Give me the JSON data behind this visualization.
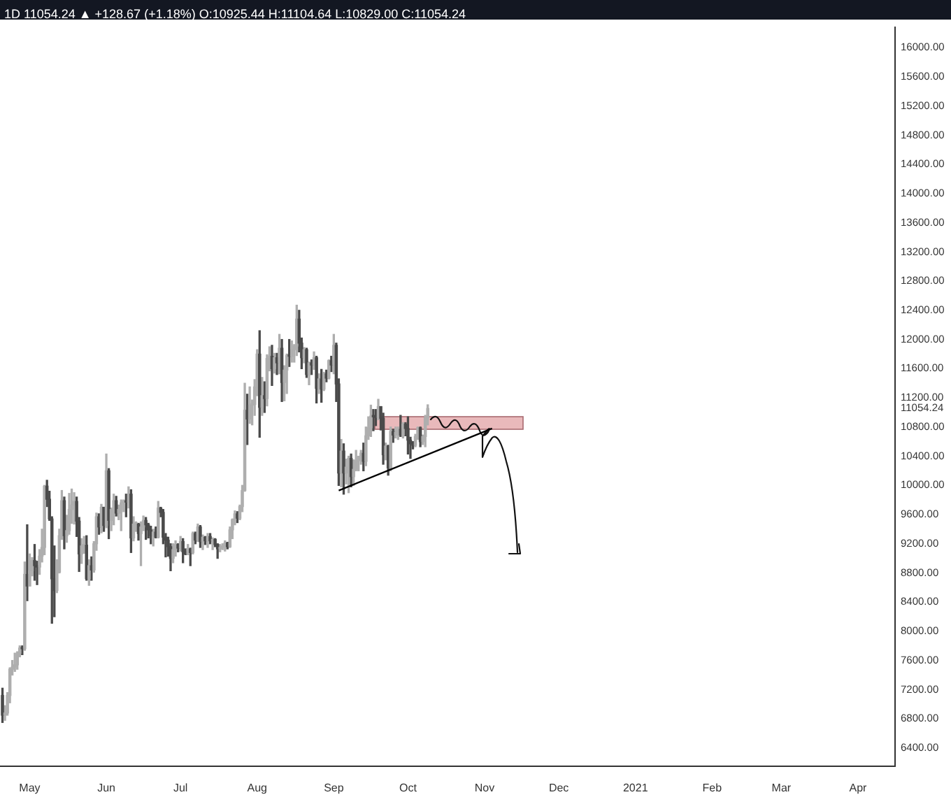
{
  "chart_data": {
    "type": "candlestick",
    "title": "1D 11054.24 ▲ +128.67 (+1.18%) O:10925.44 H:11104.64 L:10829.00 C:11054.24",
    "x": [
      "2020-04-20",
      "2020-04-21",
      "2020-04-22",
      "2020-04-23",
      "2020-04-24",
      "2020-04-25",
      "2020-04-26",
      "2020-04-27",
      "2020-04-28",
      "2020-04-29",
      "2020-04-30",
      "2020-05-01",
      "2020-05-02",
      "2020-05-03",
      "2020-05-04",
      "2020-05-05",
      "2020-05-06",
      "2020-05-07",
      "2020-05-08",
      "2020-05-09",
      "2020-05-10",
      "2020-05-11",
      "2020-05-12",
      "2020-05-13",
      "2020-05-14",
      "2020-05-15",
      "2020-05-16",
      "2020-05-17",
      "2020-05-18",
      "2020-05-19",
      "2020-05-20",
      "2020-05-21",
      "2020-05-22",
      "2020-05-23",
      "2020-05-24",
      "2020-05-25",
      "2020-05-26",
      "2020-05-27",
      "2020-05-28",
      "2020-05-29",
      "2020-05-30",
      "2020-05-31",
      "2020-06-01",
      "2020-06-02",
      "2020-06-03",
      "2020-06-04",
      "2020-06-05",
      "2020-06-06",
      "2020-06-07",
      "2020-06-08",
      "2020-06-09",
      "2020-06-10",
      "2020-06-11",
      "2020-06-12",
      "2020-06-13",
      "2020-06-14",
      "2020-06-15",
      "2020-06-16",
      "2020-06-17",
      "2020-06-18",
      "2020-06-19",
      "2020-06-20",
      "2020-06-21",
      "2020-06-22",
      "2020-06-23",
      "2020-06-24",
      "2020-06-25",
      "2020-06-26",
      "2020-06-27",
      "2020-06-28",
      "2020-06-29",
      "2020-06-30",
      "2020-07-01",
      "2020-07-02",
      "2020-07-03",
      "2020-07-04",
      "2020-07-05",
      "2020-07-06",
      "2020-07-07",
      "2020-07-08",
      "2020-07-09",
      "2020-07-10",
      "2020-07-11",
      "2020-07-12",
      "2020-07-13",
      "2020-07-14",
      "2020-07-15",
      "2020-07-16",
      "2020-07-17",
      "2020-07-18",
      "2020-07-19",
      "2020-07-20",
      "2020-07-21",
      "2020-07-22",
      "2020-07-23",
      "2020-07-24",
      "2020-07-25",
      "2020-07-26",
      "2020-07-27",
      "2020-07-28",
      "2020-07-29",
      "2020-07-30",
      "2020-07-31",
      "2020-08-01",
      "2020-08-02",
      "2020-08-03",
      "2020-08-04",
      "2020-08-05",
      "2020-08-06",
      "2020-08-07",
      "2020-08-08",
      "2020-08-09",
      "2020-08-10",
      "2020-08-11",
      "2020-08-12",
      "2020-08-13",
      "2020-08-14",
      "2020-08-15",
      "2020-08-16",
      "2020-08-17",
      "2020-08-18",
      "2020-08-19",
      "2020-08-20",
      "2020-08-21",
      "2020-08-22",
      "2020-08-23",
      "2020-08-24",
      "2020-08-25",
      "2020-08-26",
      "2020-08-27",
      "2020-08-28",
      "2020-08-29",
      "2020-08-30",
      "2020-08-31",
      "2020-09-01",
      "2020-09-02",
      "2020-09-03",
      "2020-09-04",
      "2020-09-05",
      "2020-09-06",
      "2020-09-07",
      "2020-09-08",
      "2020-09-09",
      "2020-09-10",
      "2020-09-11",
      "2020-09-12",
      "2020-09-13",
      "2020-09-14",
      "2020-09-15",
      "2020-09-16",
      "2020-09-17",
      "2020-09-18",
      "2020-09-19",
      "2020-09-20",
      "2020-09-21",
      "2020-09-22",
      "2020-09-23",
      "2020-09-24",
      "2020-09-25",
      "2020-09-26",
      "2020-09-27",
      "2020-09-28",
      "2020-09-29",
      "2020-09-30",
      "2020-10-01",
      "2020-10-02",
      "2020-10-03",
      "2020-10-04",
      "2020-10-05",
      "2020-10-06",
      "2020-10-07",
      "2020-10-08",
      "2020-10-09"
    ],
    "ohlc": [
      [
        7120,
        7220,
        6750,
        6850
      ],
      [
        6850,
        6980,
        6780,
        6880
      ],
      [
        6880,
        7160,
        6850,
        7120
      ],
      [
        7120,
        7500,
        7020,
        7480
      ],
      [
        7480,
        7600,
        7400,
        7510
      ],
      [
        7510,
        7700,
        7450,
        7540
      ],
      [
        7540,
        7720,
        7480,
        7700
      ],
      [
        7700,
        7800,
        7650,
        7770
      ],
      [
        7770,
        7800,
        7680,
        7760
      ],
      [
        7760,
        8950,
        7740,
        8780
      ],
      [
        8780,
        9460,
        8420,
        8620
      ],
      [
        8620,
        9060,
        8620,
        8830
      ],
      [
        8830,
        9010,
        8760,
        8970
      ],
      [
        8970,
        9190,
        8700,
        8900
      ],
      [
        8900,
        8960,
        8640,
        8880
      ],
      [
        8880,
        9120,
        8780,
        9030
      ],
      [
        9030,
        9400,
        8950,
        9150
      ],
      [
        9150,
        10000,
        9050,
        9990
      ],
      [
        9990,
        10070,
        9710,
        9810
      ],
      [
        9810,
        9920,
        9520,
        9540
      ],
      [
        9540,
        9570,
        8110,
        8720
      ],
      [
        8720,
        9170,
        8200,
        8560
      ],
      [
        8560,
        8980,
        8530,
        8810
      ],
      [
        8810,
        9400,
        8800,
        9310
      ],
      [
        9310,
        9930,
        9260,
        9790
      ],
      [
        9790,
        9840,
        9130,
        9310
      ],
      [
        9310,
        9590,
        9220,
        9380
      ],
      [
        9380,
        9890,
        9330,
        9670
      ],
      [
        9670,
        9950,
        9480,
        9730
      ],
      [
        9730,
        9900,
        9470,
        9780
      ],
      [
        9780,
        9840,
        9300,
        9510
      ],
      [
        9510,
        9560,
        8820,
        9060
      ],
      [
        9060,
        9270,
        8930,
        9170
      ],
      [
        9170,
        9300,
        9070,
        9180
      ],
      [
        9180,
        9310,
        8700,
        8720
      ],
      [
        8720,
        8980,
        8630,
        8900
      ],
      [
        8900,
        9020,
        8700,
        8840
      ],
      [
        8840,
        9230,
        8810,
        9200
      ],
      [
        9200,
        9620,
        9110,
        9570
      ],
      [
        9570,
        9610,
        9330,
        9430
      ],
      [
        9430,
        9740,
        9350,
        9700
      ],
      [
        9700,
        9700,
        9370,
        9450
      ],
      [
        9450,
        10430,
        9420,
        10200
      ],
      [
        10200,
        10230,
        9270,
        9520
      ],
      [
        9520,
        9690,
        9380,
        9670
      ],
      [
        9670,
        9880,
        9460,
        9790
      ],
      [
        9790,
        9850,
        9580,
        9620
      ],
      [
        9620,
        9730,
        9530,
        9670
      ],
      [
        9670,
        9800,
        9380,
        9760
      ],
      [
        9760,
        9800,
        9640,
        9780
      ],
      [
        9780,
        9880,
        9570,
        9770
      ],
      [
        9770,
        9980,
        9690,
        9880
      ],
      [
        9880,
        9940,
        9080,
        9280
      ],
      [
        9280,
        9570,
        9240,
        9470
      ],
      [
        9470,
        9500,
        9370,
        9470
      ],
      [
        9470,
        9480,
        9250,
        9340
      ],
      [
        9340,
        9500,
        8900,
        9430
      ],
      [
        9430,
        9580,
        9380,
        9520
      ],
      [
        9520,
        9560,
        9260,
        9460
      ],
      [
        9460,
        9480,
        9280,
        9390
      ],
      [
        9390,
        9440,
        9200,
        9310
      ],
      [
        9310,
        9400,
        9170,
        9360
      ],
      [
        9360,
        9430,
        9280,
        9290
      ],
      [
        9290,
        9780,
        9280,
        9690
      ],
      [
        9690,
        9700,
        9570,
        9630
      ],
      [
        9630,
        9670,
        9200,
        9290
      ],
      [
        9290,
        9340,
        9020,
        9250
      ],
      [
        9250,
        9290,
        9030,
        9160
      ],
      [
        9160,
        9200,
        8830,
        9000
      ],
      [
        9000,
        9200,
        8940,
        9120
      ],
      [
        9120,
        9240,
        9030,
        9190
      ],
      [
        9190,
        9200,
        9090,
        9140
      ],
      [
        9140,
        9300,
        9100,
        9230
      ],
      [
        9230,
        9270,
        8940,
        9090
      ],
      [
        9090,
        9130,
        9050,
        9060
      ],
      [
        9060,
        9190,
        9050,
        9130
      ],
      [
        9130,
        9140,
        8900,
        9080
      ],
      [
        9080,
        9360,
        9060,
        9340
      ],
      [
        9340,
        9360,
        9200,
        9250
      ],
      [
        9250,
        9470,
        9230,
        9430
      ],
      [
        9430,
        9450,
        9150,
        9230
      ],
      [
        9230,
        9320,
        9120,
        9290
      ],
      [
        9290,
        9300,
        9190,
        9240
      ],
      [
        9240,
        9340,
        9150,
        9300
      ],
      [
        9300,
        9340,
        9200,
        9240
      ],
      [
        9240,
        9280,
        9120,
        9260
      ],
      [
        9260,
        9270,
        9160,
        9190
      ],
      [
        9190,
        9200,
        9000,
        9130
      ],
      [
        9130,
        9190,
        9090,
        9150
      ],
      [
        9150,
        9200,
        9120,
        9170
      ],
      [
        9170,
        9240,
        9100,
        9210
      ],
      [
        9210,
        9220,
        9130,
        9160
      ],
      [
        9160,
        9430,
        9150,
        9390
      ],
      [
        9390,
        9540,
        9270,
        9530
      ],
      [
        9530,
        9650,
        9460,
        9610
      ],
      [
        9610,
        9640,
        9490,
        9550
      ],
      [
        9550,
        9730,
        9530,
        9710
      ],
      [
        9710,
        10000,
        9640,
        9930
      ],
      [
        9930,
        11400,
        9920,
        11030
      ],
      [
        11030,
        11250,
        10560,
        10910
      ],
      [
        10910,
        11350,
        10850,
        11100
      ],
      [
        11100,
        11170,
        10830,
        11110
      ],
      [
        11110,
        11450,
        10960,
        11350
      ],
      [
        11350,
        11860,
        11230,
        11800
      ],
      [
        11800,
        12120,
        10660,
        11070
      ],
      [
        11070,
        11480,
        10960,
        11230
      ],
      [
        11230,
        11420,
        11000,
        11190
      ],
      [
        11190,
        11790,
        11090,
        11740
      ],
      [
        11740,
        11900,
        11570,
        11770
      ],
      [
        11770,
        11920,
        11370,
        11600
      ],
      [
        11600,
        11810,
        11540,
        11750
      ],
      [
        11750,
        11810,
        11520,
        11680
      ],
      [
        11680,
        12070,
        11530,
        11880
      ],
      [
        11880,
        12000,
        11150,
        11410
      ],
      [
        11410,
        11640,
        11160,
        11580
      ],
      [
        11580,
        11800,
        11260,
        11780
      ],
      [
        11780,
        12000,
        11630,
        11770
      ],
      [
        11770,
        11980,
        11690,
        11860
      ],
      [
        11860,
        11930,
        11690,
        11910
      ],
      [
        11910,
        12470,
        11780,
        12280
      ],
      [
        12280,
        12400,
        11830,
        11950
      ],
      [
        11950,
        12020,
        11600,
        11750
      ],
      [
        11750,
        11890,
        11680,
        11860
      ],
      [
        11860,
        11880,
        11480,
        11520
      ],
      [
        11520,
        11690,
        11380,
        11680
      ],
      [
        11680,
        11720,
        11520,
        11650
      ],
      [
        11650,
        11830,
        11590,
        11750
      ],
      [
        11750,
        11770,
        11130,
        11330
      ],
      [
        11330,
        11530,
        11260,
        11460
      ],
      [
        11460,
        11590,
        11140,
        11320
      ],
      [
        11320,
        11550,
        11300,
        11530
      ],
      [
        11530,
        11580,
        11420,
        11470
      ],
      [
        11470,
        11720,
        11460,
        11710
      ],
      [
        11710,
        11770,
        11560,
        11650
      ],
      [
        11650,
        12070,
        11530,
        11920
      ],
      [
        11920,
        11950,
        11150,
        11390
      ],
      [
        11390,
        11460,
        10000,
        10170
      ],
      [
        10170,
        10630,
        9980,
        10470
      ],
      [
        10470,
        10570,
        9880,
        10170
      ],
      [
        10170,
        10360,
        10020,
        10250
      ],
      [
        10250,
        10400,
        9900,
        10370
      ],
      [
        10370,
        10430,
        9980,
        10120
      ],
      [
        10120,
        10350,
        10000,
        10220
      ],
      [
        10220,
        10480,
        10200,
        10340
      ],
      [
        10340,
        10400,
        10200,
        10390
      ],
      [
        10390,
        10480,
        10290,
        10440
      ],
      [
        10440,
        10580,
        10200,
        10330
      ],
      [
        10330,
        10800,
        10270,
        10680
      ],
      [
        10680,
        10940,
        10630,
        10790
      ],
      [
        10790,
        11100,
        10670,
        10950
      ],
      [
        10950,
        11040,
        10750,
        10940
      ],
      [
        10940,
        11040,
        10820,
        10930
      ],
      [
        10930,
        11180,
        10900,
        11080
      ],
      [
        11080,
        11080,
        10760,
        10920
      ],
      [
        10920,
        10990,
        10290,
        10420
      ],
      [
        10420,
        10580,
        10350,
        10540
      ],
      [
        10540,
        10550,
        10140,
        10240
      ],
      [
        10240,
        10800,
        10200,
        10740
      ],
      [
        10740,
        10770,
        10590,
        10690
      ],
      [
        10690,
        10800,
        10650,
        10730
      ],
      [
        10730,
        10800,
        10630,
        10770
      ],
      [
        10770,
        10960,
        10670,
        10690
      ],
      [
        10690,
        10860,
        10650,
        10840
      ],
      [
        10840,
        10860,
        10680,
        10780
      ],
      [
        10780,
        10940,
        10430,
        10620
      ],
      [
        10620,
        10660,
        10370,
        10570
      ],
      [
        10570,
        10600,
        10500,
        10550
      ],
      [
        10550,
        10700,
        10530,
        10670
      ],
      [
        10670,
        10800,
        10630,
        10790
      ],
      [
        10790,
        10800,
        10530,
        10600
      ],
      [
        10600,
        10690,
        10560,
        10670
      ],
      [
        10670,
        10960,
        10530,
        10925.44
      ],
      [
        10925.44,
        11104.64,
        10829,
        11054.24
      ]
    ],
    "colors": [
      "#4a4a4a",
      "#aeaeae",
      "#aeaeae",
      "#aeaeae",
      "#aeaeae",
      "#aeaeae",
      "#aeaeae",
      "#aeaeae",
      "#4a4a4a",
      "#aeaeae",
      "#4a4a4a",
      "#aeaeae",
      "#aeaeae",
      "#4a4a4a",
      "#4a4a4a",
      "#aeaeae",
      "#aeaeae",
      "#aeaeae",
      "#4a4a4a",
      "#4a4a4a",
      "#4a4a4a",
      "#4a4a4a",
      "#aeaeae",
      "#aeaeae",
      "#aeaeae",
      "#4a4a4a",
      "#aeaeae",
      "#aeaeae",
      "#aeaeae",
      "#aeaeae",
      "#4a4a4a",
      "#4a4a4a",
      "#aeaeae",
      "#aeaeae",
      "#4a4a4a",
      "#aeaeae",
      "#4a4a4a",
      "#aeaeae",
      "#aeaeae",
      "#4a4a4a",
      "#aeaeae",
      "#4a4a4a",
      "#aeaeae",
      "#4a4a4a",
      "#aeaeae",
      "#aeaeae",
      "#4a4a4a",
      "#aeaeae",
      "#aeaeae",
      "#aeaeae",
      "#4a4a4a",
      "#aeaeae",
      "#4a4a4a",
      "#aeaeae",
      "#aeaeae",
      "#4a4a4a",
      "#aeaeae",
      "#aeaeae",
      "#4a4a4a",
      "#4a4a4a",
      "#4a4a4a",
      "#aeaeae",
      "#4a4a4a",
      "#aeaeae",
      "#4a4a4a",
      "#4a4a4a",
      "#4a4a4a",
      "#4a4a4a",
      "#4a4a4a",
      "#aeaeae",
      "#aeaeae",
      "#4a4a4a",
      "#aeaeae",
      "#4a4a4a",
      "#4a4a4a",
      "#aeaeae",
      "#4a4a4a",
      "#aeaeae",
      "#4a4a4a",
      "#aeaeae",
      "#4a4a4a",
      "#aeaeae",
      "#4a4a4a",
      "#aeaeae",
      "#4a4a4a",
      "#aeaeae",
      "#4a4a4a",
      "#4a4a4a",
      "#aeaeae",
      "#aeaeae",
      "#aeaeae",
      "#4a4a4a",
      "#aeaeae",
      "#aeaeae",
      "#aeaeae",
      "#4a4a4a",
      "#aeaeae",
      "#aeaeae",
      "#aeaeae",
      "#4a4a4a",
      "#aeaeae",
      "#aeaeae",
      "#aeaeae",
      "#aeaeae",
      "#4a4a4a",
      "#aeaeae",
      "#4a4a4a",
      "#aeaeae",
      "#aeaeae",
      "#4a4a4a",
      "#aeaeae",
      "#4a4a4a",
      "#aeaeae",
      "#4a4a4a",
      "#aeaeae",
      "#aeaeae",
      "#4a4a4a",
      "#aeaeae",
      "#aeaeae",
      "#aeaeae",
      "#4a4a4a",
      "#4a4a4a",
      "#aeaeae",
      "#4a4a4a",
      "#aeaeae",
      "#4a4a4a",
      "#aeaeae",
      "#4a4a4a",
      "#aeaeae",
      "#4a4a4a",
      "#aeaeae",
      "#4a4a4a",
      "#aeaeae",
      "#4a4a4a",
      "#aeaeae",
      "#4a4a4a",
      "#4a4a4a",
      "#aeaeae",
      "#4a4a4a",
      "#aeaeae",
      "#aeaeae",
      "#4a4a4a",
      "#aeaeae",
      "#aeaeae",
      "#aeaeae",
      "#aeaeae",
      "#4a4a4a",
      "#aeaeae",
      "#aeaeae",
      "#aeaeae",
      "#4a4a4a",
      "#4a4a4a",
      "#aeaeae",
      "#4a4a4a",
      "#4a4a4a",
      "#aeaeae",
      "#4a4a4a",
      "#aeaeae",
      "#4a4a4a",
      "#aeaeae",
      "#aeaeae",
      "#4a4a4a",
      "#aeaeae",
      "#4a4a4a",
      "#4a4a4a",
      "#4a4a4a",
      "#4a4a4a",
      "#aeaeae",
      "#aeaeae",
      "#4a4a4a",
      "#aeaeae",
      "#aeaeae",
      "#aeaeae"
    ],
    "series": [
      {
        "type": "line",
        "color": "#000000",
        "x": [
          "2020-09-03",
          "2020-11-04"
        ],
        "values": [
          9930,
          10780
        ]
      }
    ],
    "xlim": [
      "2020-04-19",
      "2021-04-16"
    ],
    "xticks": [
      {
        "value": "2020-05-01",
        "label": "May"
      },
      {
        "value": "2020-06-01",
        "label": "Jun"
      },
      {
        "value": "2020-07-01",
        "label": "Jul"
      },
      {
        "value": "2020-08-01",
        "label": "Aug"
      },
      {
        "value": "2020-09-01",
        "label": "Sep"
      },
      {
        "value": "2020-10-01",
        "label": "Oct"
      },
      {
        "value": "2020-11-01",
        "label": "Nov"
      },
      {
        "value": "2020-12-01",
        "label": "Dec"
      },
      {
        "value": "2021-01-01",
        "label": "2021"
      },
      {
        "value": "2021-02-01",
        "label": "Feb"
      },
      {
        "value": "2021-03-01",
        "label": "Mar"
      },
      {
        "value": "2021-04-01",
        "label": "Apr"
      }
    ],
    "ylim": [
      6150,
      16280
    ],
    "yticks": [
      {
        "value": 6400,
        "label": "6400.00"
      },
      {
        "value": 6800,
        "label": "6800.00"
      },
      {
        "value": 7200,
        "label": "7200.00"
      },
      {
        "value": 7600,
        "label": "7600.00"
      },
      {
        "value": 8000,
        "label": "8000.00"
      },
      {
        "value": 8400,
        "label": "8400.00"
      },
      {
        "value": 8800,
        "label": "8800.00"
      },
      {
        "value": 9200,
        "label": "9200.00"
      },
      {
        "value": 9600,
        "label": "9600.00"
      },
      {
        "value": 10000,
        "label": "10000.00"
      },
      {
        "value": 10400,
        "label": "10400.00"
      },
      {
        "value": 10800,
        "label": "10800.00"
      },
      {
        "value": 11054.24,
        "label": "11054.24"
      },
      {
        "value": 11200,
        "label": "11200.00"
      },
      {
        "value": 11600,
        "label": "11600.00"
      },
      {
        "value": 12000,
        "label": "12000.00"
      },
      {
        "value": 12400,
        "label": "12400.00"
      },
      {
        "value": 12800,
        "label": "12800.00"
      },
      {
        "value": 13200,
        "label": "13200.00"
      },
      {
        "value": 13600,
        "label": "13600.00"
      },
      {
        "value": 14000,
        "label": "14000.00"
      },
      {
        "value": 14400,
        "label": "14400.00"
      },
      {
        "value": 14800,
        "label": "14800.00"
      },
      {
        "value": 15200,
        "label": "15200.00"
      },
      {
        "value": 15600,
        "label": "15600.00"
      },
      {
        "value": 16000,
        "label": "16000.00"
      }
    ]
  }
}
